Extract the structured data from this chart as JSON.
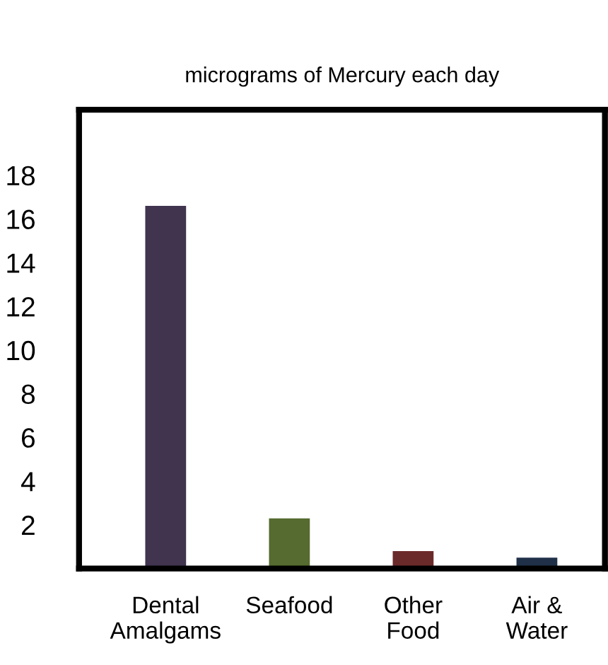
{
  "chart_data": {
    "type": "bar",
    "title": "micrograms of Mercury each day",
    "categories": [
      "Dental\nAmalgams",
      "Seafood",
      "Other\nFood",
      "Air &\nWater"
    ],
    "values": [
      16.6,
      2.3,
      0.8,
      0.5
    ],
    "colors": [
      "#41344f",
      "#556b2f",
      "#6b2a2a",
      "#1f3048"
    ],
    "ylim": [
      0,
      21
    ],
    "yticks": [
      2,
      4,
      6,
      8,
      10,
      12,
      14,
      16,
      18
    ],
    "grid": false
  }
}
